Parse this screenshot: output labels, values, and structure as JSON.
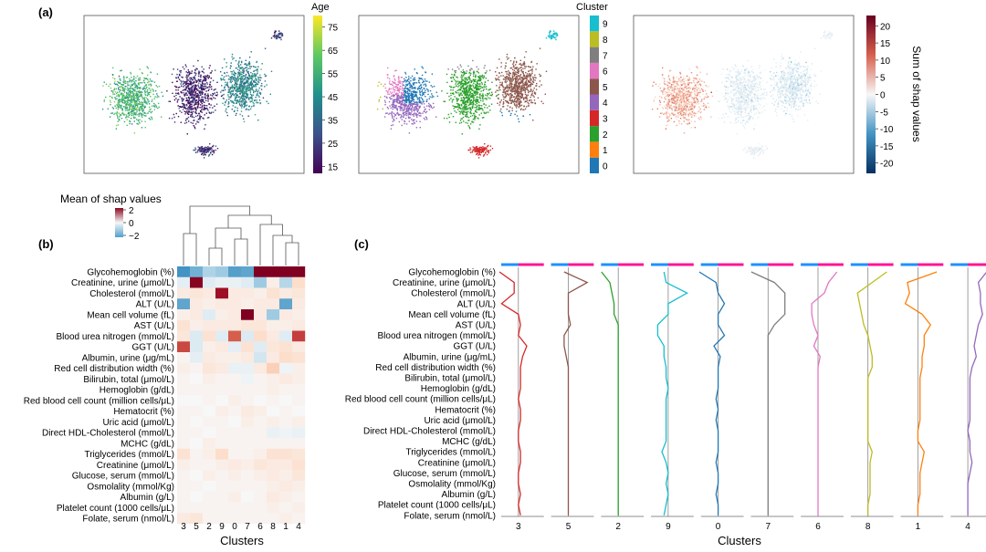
{
  "panel_labels": [
    "(a)",
    "(b)",
    "(c)"
  ],
  "chart_data": [
    {
      "type": "scatter",
      "panel": "a-left",
      "title": "",
      "colorbar": {
        "label": "Age",
        "ticks": [
          15,
          25,
          35,
          45,
          55,
          65,
          75
        ],
        "range": [
          12,
          80
        ],
        "colors": [
          "#440154",
          "#3b528b",
          "#21918c",
          "#5ec962",
          "#fde725"
        ]
      }
    },
    {
      "type": "scatter",
      "panel": "a-middle",
      "colorbar": {
        "label": "Cluster",
        "categories": [
          "0",
          "1",
          "2",
          "3",
          "4",
          "5",
          "6",
          "7",
          "8",
          "9"
        ],
        "colors": [
          "#1f77b4",
          "#ff7f0e",
          "#2ca02c",
          "#d62728",
          "#9467bd",
          "#8c564b",
          "#e377c2",
          "#7f7f7f",
          "#bcbd22",
          "#17becf"
        ]
      }
    },
    {
      "type": "scatter",
      "panel": "a-right",
      "colorbar": {
        "label": "Sum of shap values",
        "ticks": [
          20,
          15,
          10,
          5,
          0,
          -5,
          -10,
          -15,
          -20
        ],
        "range": [
          -23,
          23
        ]
      }
    },
    {
      "type": "heatmap",
      "panel": "b",
      "title": "Mean of shap values",
      "legend_ticks": [
        2,
        0,
        -2
      ],
      "xlabel": "Clusters",
      "columns": [
        "3",
        "5",
        "2",
        "9",
        "0",
        "7",
        "6",
        "8",
        "1",
        "4"
      ],
      "rows": [
        "Glycohemoglobin (%)",
        "Creatinine, urine (μmol/L)",
        "Cholesterol (mmol/L)",
        "ALT (U/L)",
        "Mean cell volume (fL)",
        "AST (U/L)",
        "Blood urea nitrogen (mmol/L)",
        "GGT (U/L)",
        "Albumin, urine (μg/mL)",
        "Red cell distribution width (%)",
        "Bilirubin, total (μmol/L)",
        "Hemoglobin (g/dL)",
        "Red blood cell count (million cells/μL)",
        "Hematocrit (%)",
        "Uric acid (μmol/L)",
        "Direct HDL-Cholesterol (mmol/L)",
        "MCHC (g/dL)",
        "Triglycerides (mmol/L)",
        "Creatinine (μmol/L)",
        "Glucose, serum (mmol/L)",
        "Osmolality (mmol/Kg)",
        "Albumin (g/L)",
        "Platelet count (1000 cells/μL)",
        "Folate, serum (nmol/L)"
      ],
      "values": [
        [
          -2.5,
          -2.0,
          -1.3,
          -1.5,
          -2.3,
          -2.2,
          3.3,
          3.3,
          3.3,
          3.3
        ],
        [
          -0.4,
          3.2,
          -0.5,
          -0.3,
          -0.3,
          -0.5,
          -1.5,
          0.2,
          -1.2,
          0.6
        ],
        [
          0.3,
          0.4,
          0.3,
          2.9,
          0.3,
          0.3,
          0.2,
          0.5,
          0.3,
          0.4
        ],
        [
          -2.2,
          0.3,
          0.2,
          0.3,
          0.3,
          0.2,
          0.3,
          0.3,
          -2.2,
          0.3
        ],
        [
          0.2,
          0.3,
          -0.5,
          0.2,
          0.3,
          3.3,
          0.3,
          -1.5,
          0.3,
          0.2
        ],
        [
          0.5,
          0.2,
          0.3,
          0.3,
          0.3,
          0.4,
          0.4,
          0.2,
          0.2,
          0.3
        ],
        [
          0.4,
          -0.6,
          0.5,
          -0.5,
          2.0,
          -0.6,
          0.6,
          0.3,
          -0.5,
          2.3
        ],
        [
          2.2,
          -0.6,
          0.2,
          0.3,
          -0.4,
          0.5,
          -0.5,
          0.4,
          0.5,
          0.3
        ],
        [
          0.1,
          -0.4,
          0.3,
          0.2,
          0.2,
          0.3,
          -0.8,
          0.3,
          0.6,
          0.5
        ],
        [
          0.2,
          0.1,
          0.4,
          0.3,
          -0.3,
          -0.3,
          0.3,
          0.8,
          -0.2,
          0.2
        ],
        [
          0.1,
          0.0,
          0.2,
          0.1,
          0.1,
          -0.2,
          0.1,
          0.2,
          0.3,
          0.2
        ],
        [
          0.1,
          0.1,
          0.1,
          0.1,
          0.1,
          0.1,
          0.1,
          0.2,
          0.1,
          0.1
        ],
        [
          0.0,
          0.0,
          0.1,
          0.0,
          0.2,
          0.1,
          0.0,
          0.1,
          0.0,
          0.1
        ],
        [
          0.1,
          0.1,
          0.0,
          0.2,
          0.1,
          0.3,
          0.2,
          0.0,
          0.1,
          0.0
        ],
        [
          0.1,
          0.0,
          0.1,
          0.1,
          0.0,
          0.2,
          0.1,
          0.2,
          0.1,
          0.2
        ],
        [
          0.1,
          0.1,
          0.0,
          0.1,
          0.1,
          0.1,
          0.1,
          -0.3,
          -0.2,
          -0.3
        ],
        [
          0.1,
          0.0,
          0.2,
          0.1,
          0.1,
          0.1,
          0.1,
          0.1,
          0.1,
          0.1
        ],
        [
          0.5,
          0.1,
          0.2,
          0.6,
          0.1,
          0.1,
          0.2,
          0.5,
          0.5,
          0.4
        ],
        [
          0.2,
          0.1,
          0.1,
          0.2,
          0.3,
          0.2,
          0.4,
          0.3,
          0.3,
          0.5
        ],
        [
          0.1,
          0.0,
          0.2,
          0.1,
          0.2,
          0.1,
          0.2,
          0.3,
          0.2,
          0.4
        ],
        [
          0.1,
          0.1,
          0.0,
          0.1,
          0.1,
          0.1,
          0.1,
          0.2,
          0.3,
          0.2
        ],
        [
          0.1,
          0.0,
          0.1,
          0.1,
          0.2,
          0.0,
          0.1,
          0.3,
          0.2,
          0.1
        ],
        [
          0.1,
          0.1,
          0.1,
          0.1,
          0.1,
          0.1,
          0.1,
          0.2,
          0.1,
          0.2
        ],
        [
          0.3,
          0.4,
          0.1,
          0.1,
          0.1,
          0.1,
          0.1,
          0.1,
          0.2,
          0.1
        ]
      ]
    },
    {
      "type": "line",
      "panel": "c",
      "xlabel": "Clusters",
      "clusters": [
        "3",
        "5",
        "2",
        "9",
        "0",
        "7",
        "6",
        "8",
        "1",
        "4"
      ],
      "cluster_colors": [
        "#d62728",
        "#8c564b",
        "#2ca02c",
        "#17becf",
        "#1f77b4",
        "#7f7f7f",
        "#e377c2",
        "#bcbd22",
        "#ff7f0e",
        "#9467bd"
      ],
      "rows": [
        "Glycohemoglobin (%)",
        "Creatinine, urine (μmol/L)",
        "Cholesterol (mmol/L)",
        "ALT (U/L)",
        "Mean cell volume (fL)",
        "AST (U/L)",
        "Blood urea nitrogen (mmol/L)",
        "GGT (U/L)",
        "Albumin, urine (μg/mL)",
        "Red cell distribution width (%)",
        "Bilirubin, total (μmol/L)",
        "Hemoglobin (g/dL)",
        "Red blood cell count (million cells/μL)",
        "Hematocrit (%)",
        "Uric acid (μmol/L)",
        "Direct HDL-Cholesterol (mmol/L)",
        "MCHC (g/dL)",
        "Triglycerides (mmol/L)",
        "Creatinine (μmol/L)",
        "Glucose, serum (mmol/L)",
        "Osmolality (mmol/Kg)",
        "Albumin (g/L)",
        "Platelet count (1000 cells/μL)",
        "Folate, serum (nmol/L)"
      ],
      "profiles": [
        [
          -0.9,
          -0.2,
          -0.2,
          -0.8,
          0.0,
          0.1,
          0.0,
          0.4,
          0.2,
          0.1,
          0.1,
          0.1,
          0.0,
          0.1,
          0.1,
          0.0,
          0.0,
          0.1,
          0.1,
          0.0,
          0.0,
          0.1,
          0.0,
          0.1
        ],
        [
          -0.2,
          0.9,
          0.0,
          0.0,
          0.0,
          0.1,
          -0.2,
          -0.2,
          -0.1,
          0.0,
          0.0,
          0.0,
          0.0,
          0.0,
          0.0,
          0.0,
          0.0,
          0.0,
          0.0,
          0.0,
          0.0,
          0.0,
          0.0,
          0.0
        ],
        [
          -0.8,
          -0.4,
          -0.3,
          -0.2,
          -0.2,
          0.0,
          0.0,
          0.0,
          0.0,
          0.0,
          0.0,
          0.0,
          0.0,
          0.0,
          0.0,
          0.0,
          0.0,
          0.0,
          0.0,
          0.0,
          0.0,
          0.0,
          0.0,
          0.0
        ],
        [
          -0.2,
          -0.1,
          0.9,
          0.0,
          0.0,
          -0.5,
          -0.5,
          -0.2,
          -0.2,
          -0.1,
          -0.1,
          0.0,
          -0.1,
          -0.1,
          -0.1,
          -0.1,
          -0.1,
          -0.3,
          -0.1,
          0.0,
          -0.1,
          0.0,
          -0.1,
          -0.2
        ],
        [
          -0.9,
          -0.1,
          0.0,
          0.3,
          0.0,
          0.0,
          0.3,
          -0.2,
          0.1,
          0.0,
          0.0,
          0.0,
          -0.1,
          0.0,
          -0.1,
          0.0,
          0.0,
          0.0,
          -0.1,
          0.0,
          0.0,
          -0.1,
          0.0,
          0.0
        ],
        [
          -0.8,
          0.3,
          0.8,
          0.8,
          0.8,
          0.3,
          0.0,
          0.0,
          0.0,
          0.0,
          0.0,
          0.0,
          0.0,
          0.0,
          0.0,
          0.0,
          0.0,
          0.0,
          0.0,
          0.0,
          0.0,
          0.0,
          0.0,
          0.0
        ],
        [
          0.9,
          0.5,
          0.3,
          -0.3,
          -0.3,
          -0.2,
          0.0,
          -0.2,
          0.1,
          0.0,
          0.0,
          0.0,
          0.0,
          0.0,
          0.0,
          0.0,
          0.0,
          0.0,
          0.0,
          0.0,
          0.0,
          0.0,
          0.0,
          0.0
        ],
        [
          0.9,
          0.2,
          -0.5,
          -0.4,
          -0.3,
          -0.2,
          0.0,
          0.1,
          0.2,
          0.2,
          0.0,
          0.0,
          0.0,
          0.0,
          0.0,
          0.0,
          0.0,
          0.2,
          0.1,
          0.1,
          0.1,
          0.1,
          0.0,
          0.0
        ],
        [
          0.9,
          -0.5,
          -0.4,
          -0.6,
          0.2,
          0.6,
          0.3,
          0.3,
          0.2,
          0.2,
          0.1,
          0.1,
          0.1,
          0.1,
          0.1,
          0.0,
          0.0,
          0.3,
          0.2,
          0.1,
          0.1,
          0.1,
          0.0,
          0.0
        ],
        [
          0.9,
          0.5,
          0.6,
          0.6,
          0.7,
          0.5,
          0.4,
          0.3,
          0.4,
          0.2,
          0.1,
          0.1,
          0.1,
          0.1,
          0.1,
          0.0,
          0.1,
          0.1,
          0.2,
          0.1,
          0.0,
          0.0,
          0.0,
          0.0
        ]
      ]
    }
  ]
}
